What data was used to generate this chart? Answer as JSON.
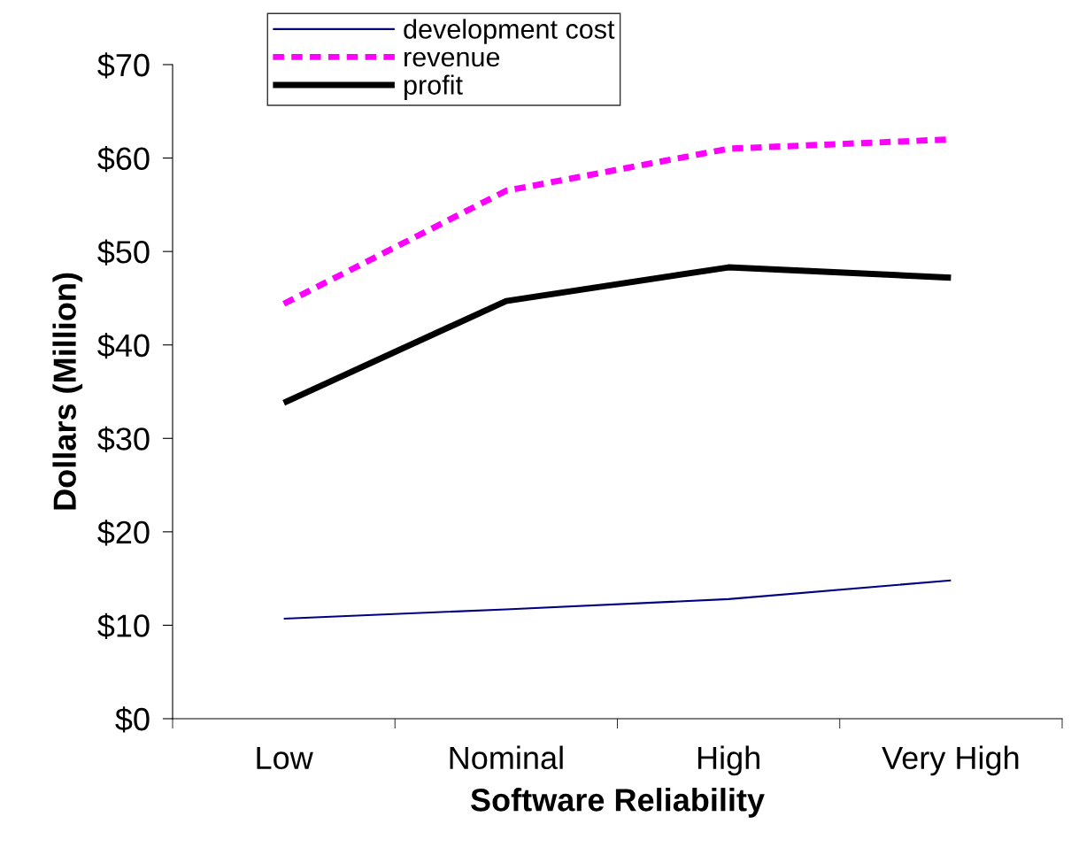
{
  "chart_data": {
    "type": "line",
    "xlabel": "Software Reliability",
    "ylabel": "Dollars (Million)",
    "categories": [
      "Low",
      "Nominal",
      "High",
      "Very High"
    ],
    "series": [
      {
        "name": "development cost",
        "color": "#000080",
        "values": [
          10.7,
          11.7,
          12.8,
          14.8
        ],
        "line_style": "solid"
      },
      {
        "name": "revenue",
        "color": "#ff00ff",
        "values": [
          44.4,
          56.5,
          61.0,
          62.0
        ],
        "line_style": "dashed"
      },
      {
        "name": "profit",
        "color": "#000000",
        "values": [
          33.8,
          44.7,
          48.3,
          47.2
        ],
        "line_style": "solid"
      }
    ],
    "ylim": [
      0,
      70
    ],
    "yticks": [
      {
        "value": 0,
        "label": "$0"
      },
      {
        "value": 10,
        "label": "$10"
      },
      {
        "value": 20,
        "label": "$20"
      },
      {
        "value": 30,
        "label": "$30"
      },
      {
        "value": 40,
        "label": "$40"
      },
      {
        "value": 50,
        "label": "$50"
      },
      {
        "value": 60,
        "label": "$60"
      },
      {
        "value": 70,
        "label": "$70"
      }
    ],
    "grid": false,
    "legend": "top",
    "marker": "none"
  }
}
